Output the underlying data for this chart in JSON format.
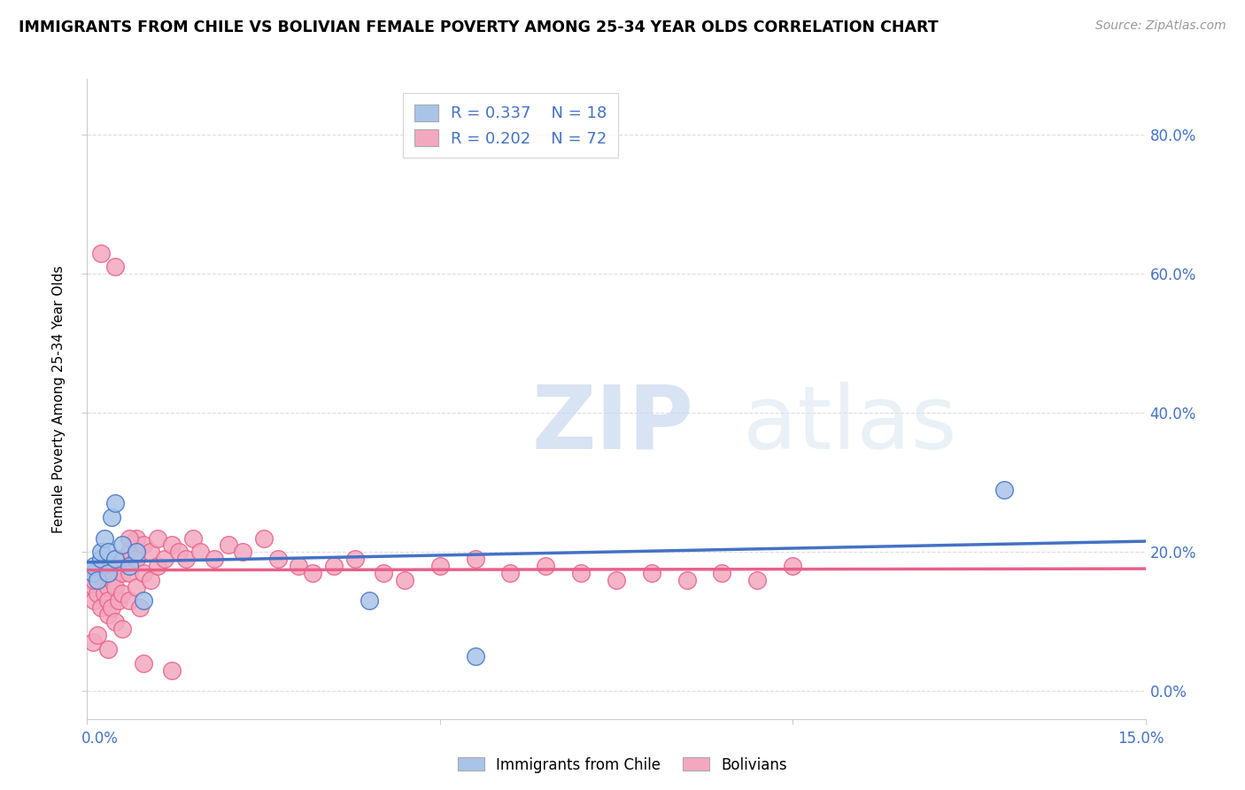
{
  "title": "IMMIGRANTS FROM CHILE VS BOLIVIAN FEMALE POVERTY AMONG 25-34 YEAR OLDS CORRELATION CHART",
  "source": "Source: ZipAtlas.com",
  "ylabel": "Female Poverty Among 25-34 Year Olds",
  "ylabel_right_ticks": [
    "0.0%",
    "20.0%",
    "40.0%",
    "60.0%",
    "80.0%"
  ],
  "ylabel_right_vals": [
    0.0,
    0.2,
    0.4,
    0.6,
    0.8
  ],
  "xlim": [
    0.0,
    0.15
  ],
  "ylim": [
    -0.04,
    0.88
  ],
  "blue_color": "#a8c4e8",
  "pink_color": "#f4a8c0",
  "blue_line_color": "#4472c4",
  "pink_line_color": "#e8608a",
  "blue_x": [
    0.0008,
    0.001,
    0.0015,
    0.002,
    0.002,
    0.0025,
    0.003,
    0.003,
    0.0035,
    0.004,
    0.004,
    0.005,
    0.006,
    0.007,
    0.008,
    0.04,
    0.055,
    0.13
  ],
  "blue_y": [
    0.17,
    0.18,
    0.16,
    0.19,
    0.2,
    0.22,
    0.17,
    0.2,
    0.25,
    0.27,
    0.19,
    0.21,
    0.18,
    0.2,
    0.13,
    0.13,
    0.05,
    0.29
  ],
  "pink_x": [
    0.0005,
    0.001,
    0.001,
    0.001,
    0.0015,
    0.002,
    0.002,
    0.002,
    0.0025,
    0.003,
    0.003,
    0.003,
    0.003,
    0.0035,
    0.0035,
    0.004,
    0.004,
    0.004,
    0.0045,
    0.005,
    0.005,
    0.005,
    0.006,
    0.006,
    0.006,
    0.007,
    0.007,
    0.007,
    0.0075,
    0.008,
    0.008,
    0.009,
    0.009,
    0.01,
    0.01,
    0.011,
    0.012,
    0.013,
    0.014,
    0.015,
    0.016,
    0.018,
    0.02,
    0.022,
    0.025,
    0.027,
    0.03,
    0.032,
    0.035,
    0.038,
    0.042,
    0.045,
    0.05,
    0.055,
    0.06,
    0.065,
    0.07,
    0.075,
    0.08,
    0.085,
    0.09,
    0.095,
    0.1,
    0.0008,
    0.0015,
    0.003,
    0.005,
    0.008,
    0.012,
    0.002,
    0.004,
    0.006,
    0.001
  ],
  "pink_y": [
    0.16,
    0.17,
    0.15,
    0.13,
    0.14,
    0.16,
    0.18,
    0.12,
    0.14,
    0.17,
    0.15,
    0.13,
    0.11,
    0.16,
    0.12,
    0.18,
    0.15,
    0.1,
    0.13,
    0.19,
    0.17,
    0.14,
    0.2,
    0.17,
    0.13,
    0.22,
    0.19,
    0.15,
    0.12,
    0.21,
    0.17,
    0.2,
    0.16,
    0.22,
    0.18,
    0.19,
    0.21,
    0.2,
    0.19,
    0.22,
    0.2,
    0.19,
    0.21,
    0.2,
    0.22,
    0.19,
    0.18,
    0.17,
    0.18,
    0.19,
    0.17,
    0.16,
    0.18,
    0.19,
    0.17,
    0.18,
    0.17,
    0.16,
    0.17,
    0.16,
    0.17,
    0.16,
    0.18,
    0.07,
    0.08,
    0.06,
    0.09,
    0.04,
    0.03,
    0.63,
    0.61,
    0.22,
    0.16
  ]
}
